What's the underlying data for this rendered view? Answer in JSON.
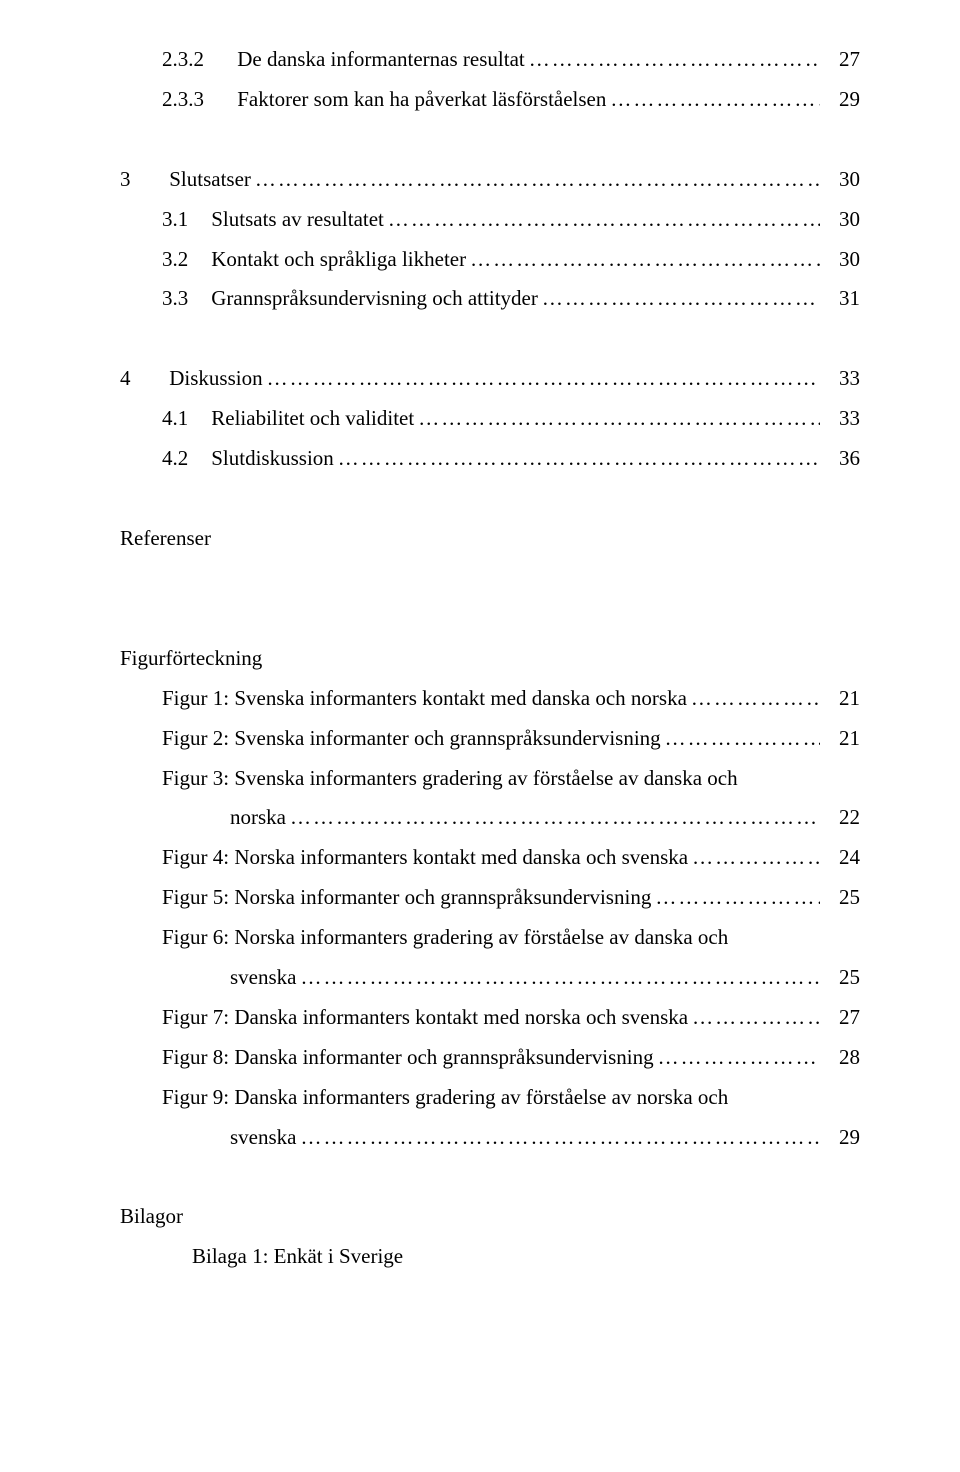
{
  "toc": {
    "e232_num": "2.3.2",
    "e232_title": "De danska informanternas resultat",
    "e232_page": "27",
    "e233_num": "2.3.3",
    "e233_title": "Faktorer som kan ha påverkat läsförståelsen",
    "e233_page": "29",
    "e3_num": "3",
    "e3_title": "Slutsatser",
    "e3_page": "30",
    "e31_num": "3.1",
    "e31_title": "Slutsats av resultatet",
    "e31_page": "30",
    "e32_num": "3.2",
    "e32_title": "Kontakt och språkliga likheter",
    "e32_page": "30",
    "e33_num": "3.3",
    "e33_title": "Grannspråksundervisning och attityder",
    "e33_page": "31",
    "e4_num": "4",
    "e4_title": "Diskussion",
    "e4_page": "33",
    "e41_num": "4.1",
    "e41_title": "Reliabilitet och validitet",
    "e41_page": "33",
    "e42_num": "4.2",
    "e42_title": "Slutdiskussion",
    "e42_page": "36",
    "referenser": "Referenser",
    "figurforteckning": "Figurförteckning",
    "fig1_label": "Figur 1: Svenska informanters kontakt med danska och norska",
    "fig1_page": "21",
    "fig2_label": "Figur 2: Svenska informanter och grannspråksundervisning",
    "fig2_page": "21",
    "fig3_label_a": "Figur 3: Svenska informanters gradering av förståelse av danska och",
    "fig3_label_b": "norska",
    "fig3_page": "22",
    "fig4_label": "Figur 4: Norska informanters kontakt med danska och svenska",
    "fig4_page": "24",
    "fig5_label": "Figur 5: Norska informanter och grannspråksundervisning",
    "fig5_page": "25",
    "fig6_label_a": "Figur 6: Norska informanters gradering av förståelse av danska och",
    "fig6_label_b": "svenska",
    "fig6_page": "25",
    "fig7_label": "Figur 7: Danska informanters kontakt med norska och svenska",
    "fig7_page": "27",
    "fig8_label": "Figur 8: Danska informanter och grannspråksundervisning",
    "fig8_page": "28",
    "fig9_label_a": "Figur 9: Danska informanters gradering av förståelse av norska och",
    "fig9_label_b": "svenska",
    "fig9_page": "29",
    "bilagor": "Bilagor",
    "bilaga1": "Bilaga 1: Enkät i Sverige"
  }
}
